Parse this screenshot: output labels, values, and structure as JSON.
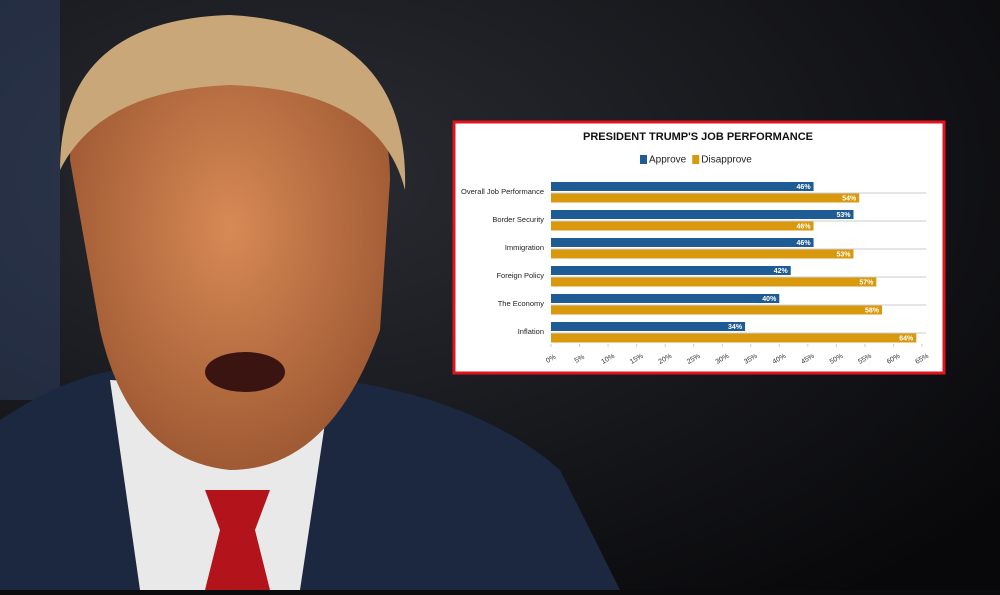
{
  "chart_data": {
    "type": "bar",
    "orientation": "horizontal",
    "title": "PRESIDENT TRUMP'S JOB PERFORMANCE",
    "categories": [
      "Overall Job Performance",
      "Border Security",
      "Immigration",
      "Foreign Policy",
      "The Economy",
      "Inflation"
    ],
    "series": [
      {
        "name": "Approve",
        "color": "#1f5b95",
        "values": [
          46,
          53,
          46,
          42,
          40,
          34
        ],
        "value_labels": [
          "46%",
          "53%",
          "46%",
          "42%",
          "40%",
          "34%"
        ]
      },
      {
        "name": "Disapprove",
        "color": "#d9990e",
        "values": [
          54,
          46,
          53,
          57,
          58,
          64
        ],
        "value_labels": [
          "54%",
          "46%",
          "53%",
          "57%",
          "58%",
          "64%"
        ]
      }
    ],
    "xlim": [
      0,
      65
    ],
    "xticks": [
      {
        "value": 0,
        "label": "0%"
      },
      {
        "value": 5,
        "label": "5%"
      },
      {
        "value": 10,
        "label": "10%"
      },
      {
        "value": 15,
        "label": "15%"
      },
      {
        "value": 20,
        "label": "20%"
      },
      {
        "value": 25,
        "label": "25%"
      },
      {
        "value": 30,
        "label": "30%"
      },
      {
        "value": 35,
        "label": "35%"
      },
      {
        "value": 40,
        "label": "40%"
      },
      {
        "value": 45,
        "label": "45%"
      },
      {
        "value": 50,
        "label": "50%"
      },
      {
        "value": 55,
        "label": "55%"
      },
      {
        "value": 60,
        "label": "60%"
      },
      {
        "value": 65,
        "label": "65%"
      }
    ]
  }
}
